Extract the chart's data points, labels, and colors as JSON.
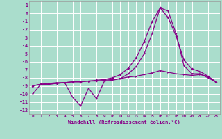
{
  "xlabel": "Windchill (Refroidissement éolien,°C)",
  "background_color": "#aaddcc",
  "grid_color": "#ffffff",
  "line_color": "#880088",
  "xlim": [
    -0.5,
    23.5
  ],
  "ylim": [
    -12.5,
    1.5
  ],
  "xticks": [
    0,
    1,
    2,
    3,
    4,
    5,
    6,
    7,
    8,
    9,
    10,
    11,
    12,
    13,
    14,
    15,
    16,
    17,
    18,
    19,
    20,
    21,
    22,
    23
  ],
  "yticks": [
    1,
    0,
    -1,
    -2,
    -3,
    -4,
    -5,
    -6,
    -7,
    -8,
    -9,
    -10,
    -11,
    -12
  ],
  "raw_y": [
    -10.0,
    -8.8,
    -8.8,
    -8.7,
    -8.6,
    -10.4,
    -11.5,
    -9.3,
    -10.6,
    -8.4,
    -8.3,
    -8.1,
    -7.5,
    -6.6,
    -5.0,
    -2.5,
    0.7,
    0.3,
    -2.5,
    -6.5,
    -7.5,
    -7.5,
    -8.0,
    -8.5
  ],
  "smooth_y": [
    -9.0,
    -8.8,
    -8.8,
    -8.7,
    -8.6,
    -8.5,
    -8.5,
    -8.4,
    -8.3,
    -8.2,
    -8.0,
    -7.6,
    -6.8,
    -5.5,
    -3.5,
    -1.0,
    0.7,
    -0.5,
    -2.8,
    -5.8,
    -6.9,
    -7.2,
    -7.8,
    -8.5
  ],
  "trend_y": [
    -9.0,
    -8.8,
    -8.7,
    -8.6,
    -8.6,
    -8.5,
    -8.5,
    -8.4,
    -8.4,
    -8.3,
    -8.2,
    -8.1,
    -7.9,
    -7.8,
    -7.6,
    -7.4,
    -7.1,
    -7.3,
    -7.5,
    -7.6,
    -7.7,
    -7.6,
    -7.8,
    -8.5
  ]
}
